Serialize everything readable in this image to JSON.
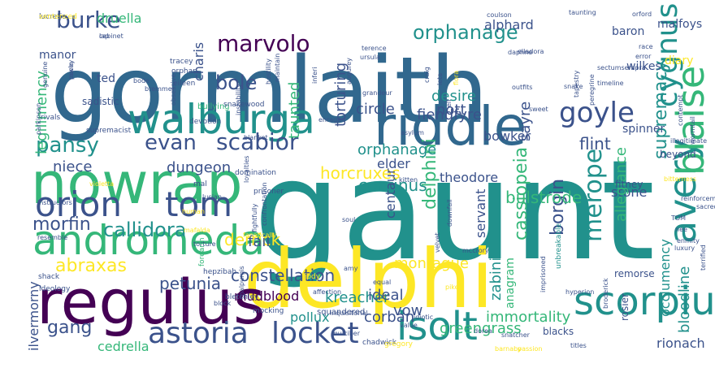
{
  "word_cloud": {
    "colors": {
      "dark_purple": "#440154",
      "indigo": "#3b528b",
      "blue": "#31688e",
      "teal": "#21918c",
      "green": "#35b779",
      "lime": "#90d743",
      "yellow": "#fde725"
    },
    "words": [
      {
        "text": "gormlaith",
        "color": "#31688e"
      },
      {
        "text": "gaunt",
        "color": "#21918c"
      },
      {
        "text": "delphi",
        "color": "#fde725"
      },
      {
        "text": "regulus",
        "color": "#440154"
      },
      {
        "text": "nowrap",
        "color": "#35b779"
      },
      {
        "text": "walburga",
        "color": "#21918c"
      },
      {
        "text": "riddle",
        "color": "#31688e"
      },
      {
        "text": "andromeda",
        "color": "#35b779"
      },
      {
        "text": "orion",
        "color": "#3b528b"
      },
      {
        "text": "tom",
        "color": "#3b528b"
      },
      {
        "text": "scorpius",
        "color": "#21918c"
      },
      {
        "text": "astoria",
        "color": "#3b528b"
      },
      {
        "text": "locket",
        "color": "#3b528b"
      },
      {
        "text": "isolt",
        "color": "#21918c"
      },
      {
        "text": "avery",
        "color": "#21918c"
      },
      {
        "text": "blaise",
        "color": "#35b779"
      },
      {
        "text": "goyle",
        "color": "#3b528b"
      },
      {
        "text": "marvolo",
        "color": "#440154"
      },
      {
        "text": "burke",
        "color": "#3b528b"
      },
      {
        "text": "pansy",
        "color": "#21918c"
      },
      {
        "text": "orphanage",
        "color": "#21918c"
      },
      {
        "text": "cygnus",
        "color": "#21918c"
      },
      {
        "text": "bole",
        "color": "#3b528b"
      },
      {
        "text": "evan",
        "color": "#3b528b"
      },
      {
        "text": "scabior",
        "color": "#3b528b"
      },
      {
        "text": "merope",
        "color": "#21918c"
      },
      {
        "text": "callidora",
        "color": "#21918c"
      },
      {
        "text": "morfin",
        "color": "#3b528b"
      },
      {
        "text": "abraxas",
        "color": "#fde725"
      },
      {
        "text": "gang",
        "color": "#3b528b"
      },
      {
        "text": "derrick",
        "color": "#fde725"
      },
      {
        "text": "petunia",
        "color": "#3b528b"
      },
      {
        "text": "constellation",
        "color": "#3b528b"
      },
      {
        "text": "kreacher",
        "color": "#21918c"
      },
      {
        "text": "corvinus",
        "color": "#21918c"
      },
      {
        "text": "borgin",
        "color": "#3b528b"
      },
      {
        "text": "cassiopeia",
        "color": "#35b779"
      },
      {
        "text": "delphini",
        "color": "#35b779"
      },
      {
        "text": "bulstrode",
        "color": "#35b779"
      },
      {
        "text": "horcruxes",
        "color": "#fde725"
      },
      {
        "text": "flint",
        "color": "#3b528b"
      },
      {
        "text": "supremacy",
        "color": "#21918c"
      },
      {
        "text": "servant",
        "color": "#3b528b"
      },
      {
        "text": "montague",
        "color": "#fde725"
      },
      {
        "text": "dungeon",
        "color": "#3b528b"
      },
      {
        "text": "niece",
        "color": "#3b528b"
      },
      {
        "text": "legilimency",
        "color": "#35b779"
      },
      {
        "text": "immortality",
        "color": "#35b779"
      },
      {
        "text": "greengrass",
        "color": "#35b779"
      },
      {
        "text": "bloodline",
        "color": "#21918c"
      },
      {
        "text": "occlumency",
        "color": "#21918c"
      },
      {
        "text": "rionach",
        "color": "#3b528b"
      },
      {
        "text": "vow",
        "color": "#3b528b"
      },
      {
        "text": "ideal",
        "color": "#3b528b"
      },
      {
        "text": "corban",
        "color": "#3b528b"
      },
      {
        "text": "pollux",
        "color": "#21918c"
      },
      {
        "text": "mudblood",
        "color": "#440154"
      },
      {
        "text": "fail",
        "color": "#3b528b"
      },
      {
        "text": "stone",
        "color": "#3b528b"
      },
      {
        "text": "allegiance",
        "color": "#35b779"
      },
      {
        "text": "fiendfyre",
        "color": "#3b528b"
      },
      {
        "text": "orphanage",
        "color": "#21918c"
      },
      {
        "text": "alphard",
        "color": "#3b528b"
      },
      {
        "text": "druella",
        "color": "#35b779"
      },
      {
        "text": "charis",
        "color": "#3b528b"
      },
      {
        "text": "torturing",
        "color": "#3b528b"
      },
      {
        "text": "taunted",
        "color": "#35b779"
      },
      {
        "text": "circle",
        "color": "#3b528b"
      },
      {
        "text": "desire",
        "color": "#21918c"
      },
      {
        "text": "nott",
        "color": "#3b528b"
      },
      {
        "text": "elder",
        "color": "#3b528b"
      },
      {
        "text": "bowker",
        "color": "#3b528b"
      },
      {
        "text": "sayre",
        "color": "#3b528b"
      },
      {
        "text": "theodore",
        "color": "#3b528b"
      },
      {
        "text": "centaur",
        "color": "#3b528b"
      },
      {
        "text": "ilvermorny",
        "color": "#3b528b"
      },
      {
        "text": "cedrella",
        "color": "#35b779"
      },
      {
        "text": "baron",
        "color": "#3b528b"
      },
      {
        "text": "malfoys",
        "color": "#3b528b"
      },
      {
        "text": "wilkes",
        "color": "#3b528b"
      },
      {
        "text": "diary",
        "color": "#fde725"
      },
      {
        "text": "manor",
        "color": "#3b528b"
      },
      {
        "text": "ted",
        "color": "#3b528b"
      },
      {
        "text": "sadistic",
        "color": "#3b528b"
      },
      {
        "text": "spinner",
        "color": "#3b528b"
      },
      {
        "text": "fitney",
        "color": "#3b528b"
      },
      {
        "text": "beyond",
        "color": "#3b528b"
      },
      {
        "text": "zabini",
        "color": "#21918c"
      },
      {
        "text": "anagram",
        "color": "#35b779"
      },
      {
        "text": "blacks",
        "color": "#3b528b"
      },
      {
        "text": "remorse",
        "color": "#3b528b"
      },
      {
        "text": "rosier",
        "color": "#3b528b"
      }
    ],
    "small_words": [
      {
        "text": "lucretia",
        "color": "#3b528b"
      },
      {
        "text": "lap",
        "color": "#3b528b"
      },
      {
        "text": "pucey",
        "color": "#3b528b"
      },
      {
        "text": "genuine",
        "color": "#3b528b"
      },
      {
        "text": "rivals",
        "color": "#3b528b"
      },
      {
        "text": "parkinson",
        "color": "#3b528b"
      },
      {
        "text": "supremacist",
        "color": "#3b528b"
      },
      {
        "text": "violetta",
        "color": "#fde725"
      },
      {
        "text": "instructors",
        "color": "#3b528b"
      },
      {
        "text": "resemble",
        "color": "#3b528b"
      },
      {
        "text": "shack",
        "color": "#3b528b"
      },
      {
        "text": "ideology",
        "color": "#3b528b"
      },
      {
        "text": "bode",
        "color": "#3b528b"
      },
      {
        "text": "bremmer",
        "color": "#3b528b"
      },
      {
        "text": "tracey",
        "color": "#3b528b"
      },
      {
        "text": "orphan",
        "color": "#3b528b"
      },
      {
        "text": "eileen",
        "color": "#3b528b"
      },
      {
        "text": "obsessive",
        "color": "#3b528b"
      },
      {
        "text": "devotion",
        "color": "#3b528b"
      },
      {
        "text": "bullying",
        "color": "#35b779"
      },
      {
        "text": "snakewood",
        "color": "#3b528b"
      },
      {
        "text": "blanket",
        "color": "#3b528b"
      },
      {
        "text": "domination",
        "color": "#3b528b"
      },
      {
        "text": "prisoner",
        "color": "#3b528b"
      },
      {
        "text": "mal",
        "color": "#3b528b"
      },
      {
        "text": "lucian",
        "color": "#3b528b"
      },
      {
        "text": "human",
        "color": "#fde725"
      },
      {
        "text": "mafalda",
        "color": "#fde725"
      },
      {
        "text": "torture",
        "color": "#3b528b"
      },
      {
        "text": "hepzibah",
        "color": "#3b528b"
      },
      {
        "text": "bletchley",
        "color": "#3b528b"
      },
      {
        "text": "mocking",
        "color": "#3b528b"
      },
      {
        "text": "forearm",
        "color": "#35b779"
      },
      {
        "text": "jody",
        "color": "#fde725"
      },
      {
        "text": "squandered",
        "color": "#3b528b"
      },
      {
        "text": "chadwick",
        "color": "#3b528b"
      },
      {
        "text": "gregory",
        "color": "#fde725"
      },
      {
        "text": "mulciber",
        "color": "#3b528b"
      },
      {
        "text": "inquisitorial",
        "color": "#3b528b"
      },
      {
        "text": "affection",
        "color": "#3b528b"
      },
      {
        "text": "value",
        "color": "#3b528b"
      },
      {
        "text": "idiotic",
        "color": "#3b528b"
      },
      {
        "text": "dorea",
        "color": "#3b528b"
      },
      {
        "text": "barnaby",
        "color": "#fde725"
      },
      {
        "text": "passion",
        "color": "#fde725"
      },
      {
        "text": "titles",
        "color": "#3b528b"
      },
      {
        "text": "snatcher",
        "color": "#3b528b"
      },
      {
        "text": "pike",
        "color": "#fde725"
      },
      {
        "text": "amy",
        "color": "#3b528b"
      },
      {
        "text": "equal",
        "color": "#3b528b"
      },
      {
        "text": "soul",
        "color": "#3b528b"
      },
      {
        "text": "unbreakable",
        "color": "#21918c"
      },
      {
        "text": "imprisoned",
        "color": "#3b528b"
      },
      {
        "text": "hyperion",
        "color": "#3b528b"
      },
      {
        "text": "broderick",
        "color": "#3b528b"
      },
      {
        "text": "terrified",
        "color": "#3b528b"
      },
      {
        "text": "luxury",
        "color": "#3b528b"
      },
      {
        "text": "enmity",
        "color": "#3b528b"
      },
      {
        "text": "nee",
        "color": "#3b528b"
      },
      {
        "text": "TOM",
        "color": "#3b528b"
      },
      {
        "text": "sacred",
        "color": "#3b528b"
      },
      {
        "text": "reinforcements",
        "color": "#3b528b"
      },
      {
        "text": "bitterness",
        "color": "#fde725"
      },
      {
        "text": "illegitimate",
        "color": "#3b528b"
      },
      {
        "text": "wormtail",
        "color": "#3b528b"
      },
      {
        "text": "contempt",
        "color": "#3b528b"
      },
      {
        "text": "timeline",
        "color": "#3b528b"
      },
      {
        "text": "sectumsempra",
        "color": "#3b528b"
      },
      {
        "text": "error",
        "color": "#3b528b"
      },
      {
        "text": "race",
        "color": "#3b528b"
      },
      {
        "text": "orford",
        "color": "#3b528b"
      },
      {
        "text": "taunting",
        "color": "#3b528b"
      },
      {
        "text": "coulson",
        "color": "#3b528b"
      },
      {
        "text": "elladora",
        "color": "#3b528b"
      },
      {
        "text": "daphne",
        "color": "#3b528b"
      },
      {
        "text": "outfits",
        "color": "#3b528b"
      },
      {
        "text": "sweet",
        "color": "#3b528b"
      },
      {
        "text": "snake",
        "color": "#3b528b"
      },
      {
        "text": "tapestry",
        "color": "#3b528b"
      },
      {
        "text": "peregrine",
        "color": "#3b528b"
      },
      {
        "text": "elf",
        "color": "#3b528b"
      },
      {
        "text": "asylum",
        "color": "#3b528b"
      },
      {
        "text": "kitten",
        "color": "#3b528b"
      },
      {
        "text": "enraged",
        "color": "#3b528b"
      },
      {
        "text": "grandeur",
        "color": "#3b528b"
      },
      {
        "text": "ursula",
        "color": "#3b528b"
      },
      {
        "text": "terence",
        "color": "#3b528b"
      },
      {
        "text": "leta",
        "color": "#3b528b"
      },
      {
        "text": "flora",
        "color": "#fde725"
      },
      {
        "text": "craig",
        "color": "#3b528b"
      },
      {
        "text": "augurey",
        "color": "#3b528b"
      },
      {
        "text": "inferi",
        "color": "#3b528b"
      },
      {
        "text": "hostility",
        "color": "#3b528b"
      },
      {
        "text": "maintain",
        "color": "#3b528b"
      },
      {
        "text": "instability",
        "color": "#3b528b"
      },
      {
        "text": "fightfully",
        "color": "#3b528b"
      },
      {
        "text": "fanatically",
        "color": "#fde725"
      },
      {
        "text": "loyalties",
        "color": "#3b528b"
      },
      {
        "text": "confrontation",
        "color": "#3b528b"
      },
      {
        "text": "velvet",
        "color": "#3b528b"
      },
      {
        "text": "mccrory",
        "color": "#3b528b"
      },
      {
        "text": "downfall",
        "color": "#3b528b"
      },
      {
        "text": "malpurgis",
        "color": "#3b528b"
      },
      {
        "text": "block",
        "color": "#3b528b"
      },
      {
        "text": "sentenced",
        "color": "#fde725"
      },
      {
        "text": "cabinet",
        "color": "#3b528b"
      },
      {
        "text": "rowle",
        "color": "#3b528b"
      }
    ]
  }
}
